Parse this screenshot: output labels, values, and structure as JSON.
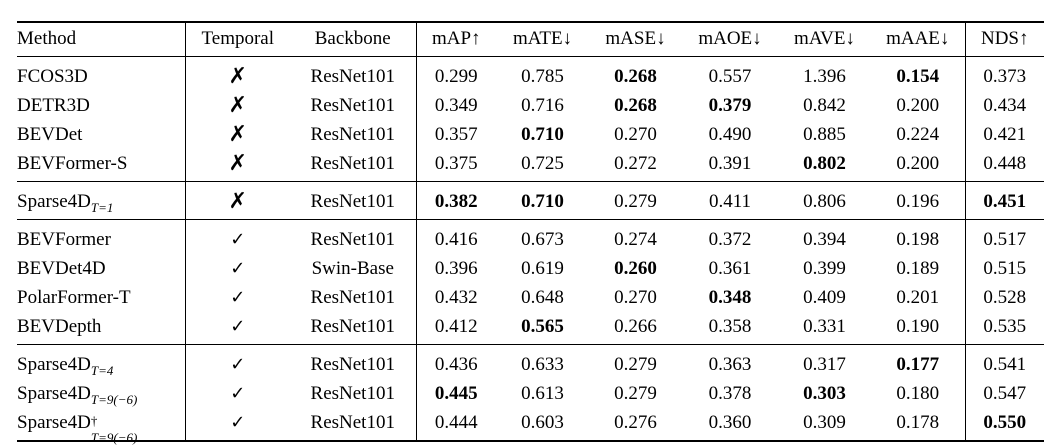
{
  "header": {
    "method": "Method",
    "temporal": "Temporal",
    "backbone": "Backbone",
    "metrics": [
      "mAP↑",
      "mATE↓",
      "mASE↓",
      "mAOE↓",
      "mAVE↓",
      "mAAE↓"
    ],
    "nds": "NDS↑"
  },
  "groups": [
    {
      "rows": [
        {
          "method": "FCOS3D",
          "temporal": "✗",
          "backbone": "ResNet101",
          "values": [
            "0.299",
            "0.785",
            "0.268",
            "0.557",
            "1.396",
            "0.154"
          ],
          "nds": "0.373",
          "bold": [
            2,
            5
          ],
          "nds_bold": false
        },
        {
          "method": "DETR3D",
          "temporal": "✗",
          "backbone": "ResNet101",
          "values": [
            "0.349",
            "0.716",
            "0.268",
            "0.379",
            "0.842",
            "0.200"
          ],
          "nds": "0.434",
          "bold": [
            2,
            3
          ],
          "nds_bold": false
        },
        {
          "method": "BEVDet",
          "temporal": "✗",
          "backbone": "ResNet101",
          "values": [
            "0.357",
            "0.710",
            "0.270",
            "0.490",
            "0.885",
            "0.224"
          ],
          "nds": "0.421",
          "bold": [
            1
          ],
          "nds_bold": false
        },
        {
          "method": "BEVFormer-S",
          "temporal": "✗",
          "backbone": "ResNet101",
          "values": [
            "0.375",
            "0.725",
            "0.272",
            "0.391",
            "0.802",
            "0.200"
          ],
          "nds": "0.448",
          "bold": [
            4
          ],
          "nds_bold": false
        }
      ]
    },
    {
      "rows": [
        {
          "method": "Sparse4D",
          "sub": "T=1",
          "temporal": "✗",
          "backbone": "ResNet101",
          "values": [
            "0.382",
            "0.710",
            "0.279",
            "0.411",
            "0.806",
            "0.196"
          ],
          "nds": "0.451",
          "bold": [
            0,
            1
          ],
          "nds_bold": true
        }
      ]
    },
    {
      "rows": [
        {
          "method": "BEVFormer",
          "temporal": "✓",
          "backbone": "ResNet101",
          "values": [
            "0.416",
            "0.673",
            "0.274",
            "0.372",
            "0.394",
            "0.198"
          ],
          "nds": "0.517",
          "bold": [],
          "nds_bold": false
        },
        {
          "method": "BEVDet4D",
          "temporal": "✓",
          "backbone": "Swin-Base",
          "values": [
            "0.396",
            "0.619",
            "0.260",
            "0.361",
            "0.399",
            "0.189"
          ],
          "nds": "0.515",
          "bold": [
            2
          ],
          "nds_bold": false
        },
        {
          "method": "PolarFormer-T",
          "temporal": "✓",
          "backbone": "ResNet101",
          "values": [
            "0.432",
            "0.648",
            "0.270",
            "0.348",
            "0.409",
            "0.201"
          ],
          "nds": "0.528",
          "bold": [
            3
          ],
          "nds_bold": false
        },
        {
          "method": "BEVDepth",
          "temporal": "✓",
          "backbone": "ResNet101",
          "values": [
            "0.412",
            "0.565",
            "0.266",
            "0.358",
            "0.331",
            "0.190"
          ],
          "nds": "0.535",
          "bold": [
            1
          ],
          "nds_bold": false
        }
      ]
    },
    {
      "rows": [
        {
          "method": "Sparse4D",
          "sub": "T=4",
          "temporal": "✓",
          "backbone": "ResNet101",
          "values": [
            "0.436",
            "0.633",
            "0.279",
            "0.363",
            "0.317",
            "0.177"
          ],
          "nds": "0.541",
          "bold": [
            5
          ],
          "nds_bold": false
        },
        {
          "method": "Sparse4D",
          "sub": "T=9(−6)",
          "temporal": "✓",
          "backbone": "ResNet101",
          "values": [
            "0.445",
            "0.613",
            "0.279",
            "0.378",
            "0.303",
            "0.180"
          ],
          "nds": "0.547",
          "bold": [
            0,
            4
          ],
          "nds_bold": false
        },
        {
          "method": "Sparse4D",
          "sup": "†",
          "sub": "T=9(−6)",
          "temporal": "✓",
          "backbone": "ResNet101",
          "values": [
            "0.444",
            "0.603",
            "0.276",
            "0.360",
            "0.309",
            "0.178"
          ],
          "nds": "0.550",
          "bold": [],
          "nds_bold": true
        }
      ]
    }
  ]
}
